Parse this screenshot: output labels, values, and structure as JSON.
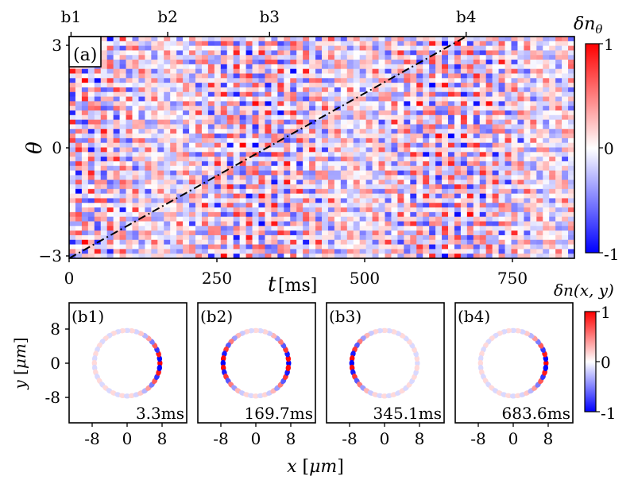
{
  "chart_data": [
    {
      "type": "heatmap",
      "panel_label": "(a)",
      "xlabel_var": "t",
      "xlabel_unit": "[ms]",
      "ylabel": "θ",
      "x_range": [
        0,
        870
      ],
      "y_range": [
        -3.14,
        3.14
      ],
      "x_ticks": [
        0,
        250,
        500,
        750
      ],
      "x_tick_labels": [
        "0",
        "250",
        "500",
        "750"
      ],
      "y_ticks": [
        3,
        0,
        -3
      ],
      "y_tick_labels": [
        "3",
        "0",
        "−3"
      ],
      "top_markers": [
        {
          "label": "b1",
          "t": 3.3
        },
        {
          "label": "b2",
          "t": 169.7
        },
        {
          "label": "b3",
          "t": 345.1
        },
        {
          "label": "b4",
          "t": 683.6
        }
      ],
      "dashdot_line": {
        "from": [
          0,
          -3.14
        ],
        "to": [
          683.6,
          3.14
        ]
      },
      "colorbar": {
        "label": "δn",
        "label_sub": "θ",
        "ticks": [
          "1",
          "0",
          "-1"
        ],
        "range": [
          -1,
          1
        ],
        "colors": [
          "#0000ff",
          "#ffffff",
          "#ff0000"
        ]
      }
    },
    {
      "type": "heatmap",
      "xlabel_var": "x",
      "xlabel_unit": "μm",
      "ylabel_var": "y",
      "ylabel_unit": "μm",
      "x_tick_labels": [
        "-8",
        "0",
        "8"
      ],
      "y_tick_labels": [
        "8",
        "0",
        "-8"
      ],
      "x_range": [
        -14,
        14
      ],
      "y_range": [
        -14,
        14
      ],
      "panels": [
        {
          "label": "(b1)",
          "time": "3.3ms"
        },
        {
          "label": "(b2)",
          "time": "169.7ms"
        },
        {
          "label": "(b3)",
          "time": "345.1ms"
        },
        {
          "label": "(b4)",
          "time": "683.6ms"
        }
      ],
      "ring_radius": 7.5,
      "colorbar": {
        "label": "δn(x, y)",
        "ticks": [
          "1",
          "0",
          "-1"
        ],
        "range": [
          -1,
          1
        ]
      }
    }
  ]
}
